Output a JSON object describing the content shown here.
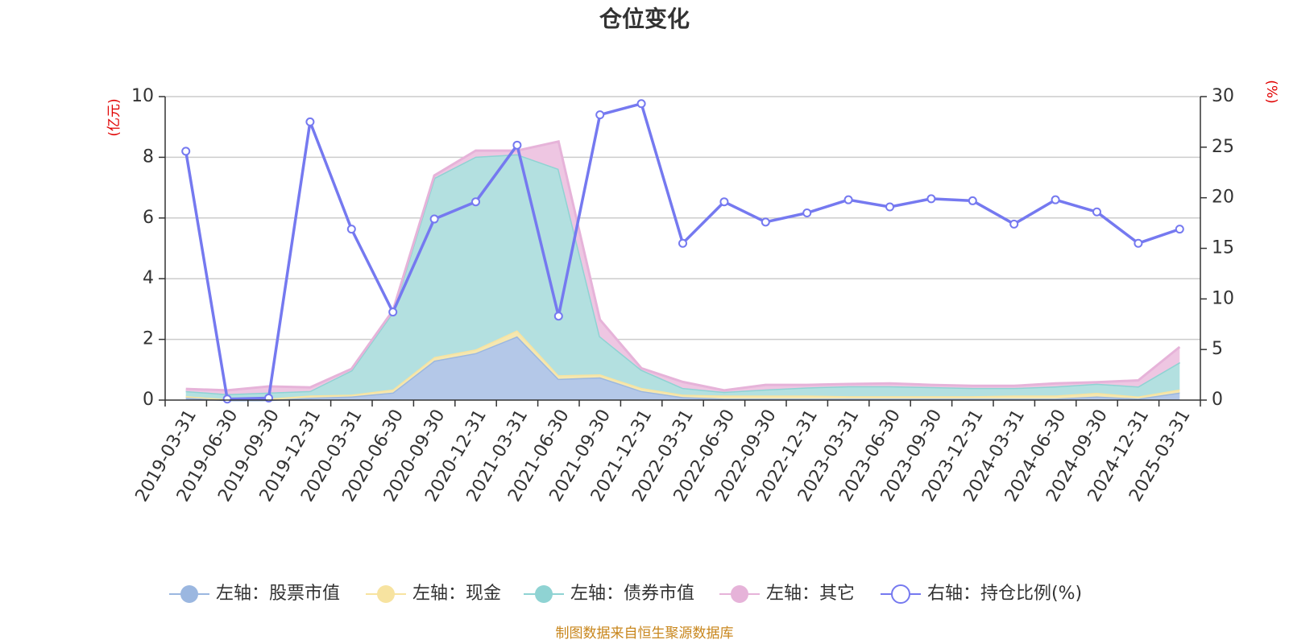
{
  "title": "仓位变化",
  "source_note": "制图数据来自恒生聚源数据库",
  "y_left_unit": "(亿元)",
  "y_right_unit": "(%)",
  "chart_data": {
    "type": "area",
    "title": "仓位变化",
    "x": [
      "2019-03-31",
      "2019-06-30",
      "2019-09-30",
      "2019-12-31",
      "2020-03-31",
      "2020-06-30",
      "2020-09-30",
      "2020-12-31",
      "2021-03-31",
      "2021-06-30",
      "2021-09-30",
      "2021-12-31",
      "2022-03-31",
      "2022-06-30",
      "2022-09-30",
      "2022-12-31",
      "2023-03-31",
      "2023-06-30",
      "2023-09-30",
      "2023-12-31",
      "2024-03-31",
      "2024-06-30",
      "2024-09-30",
      "2024-12-31",
      "2025-03-31"
    ],
    "y_left": {
      "unit": "(亿元)",
      "ylim": [
        0,
        10
      ],
      "ticks": [
        0,
        2,
        4,
        6,
        8,
        10
      ]
    },
    "y_right": {
      "unit": "(%)",
      "ylim": [
        0,
        30
      ],
      "ticks": [
        0,
        5,
        10,
        15,
        20,
        25,
        30
      ]
    },
    "grid": true,
    "legend_position": "bottom",
    "series": [
      {
        "name": "左轴：股票市值",
        "axis": "left",
        "stacked": true,
        "color": "#9bb7e0",
        "fill": "#b4c8e8",
        "values": [
          0.08,
          0.0,
          0.0,
          0.08,
          0.12,
          0.25,
          1.3,
          1.55,
          2.1,
          0.7,
          0.75,
          0.3,
          0.1,
          0.05,
          0.05,
          0.05,
          0.05,
          0.05,
          0.05,
          0.05,
          0.05,
          0.05,
          0.12,
          0.05,
          0.25
        ]
      },
      {
        "name": "左轴：现金",
        "axis": "left",
        "stacked": true,
        "color": "#f7e3a0",
        "fill": "#f5e7b0",
        "values": [
          0.05,
          0.03,
          0.05,
          0.07,
          0.06,
          0.1,
          0.12,
          0.12,
          0.2,
          0.12,
          0.1,
          0.1,
          0.08,
          0.1,
          0.1,
          0.1,
          0.08,
          0.08,
          0.08,
          0.08,
          0.1,
          0.1,
          0.12,
          0.07,
          0.1
        ]
      },
      {
        "name": "左轴：债券市值",
        "axis": "left",
        "stacked": true,
        "color": "#8fd3d3",
        "fill": "#b3e0e0",
        "values": [
          0.17,
          0.17,
          0.2,
          0.15,
          0.8,
          2.55,
          5.9,
          6.35,
          5.8,
          6.8,
          1.25,
          0.6,
          0.22,
          0.12,
          0.2,
          0.27,
          0.33,
          0.33,
          0.3,
          0.27,
          0.25,
          0.3,
          0.3,
          0.33,
          0.9
        ]
      },
      {
        "name": "左轴：其它",
        "axis": "left",
        "stacked": true,
        "color": "#e6b3d9",
        "fill": "#eec6e2",
        "values": [
          0.07,
          0.12,
          0.2,
          0.12,
          0.05,
          0.05,
          0.08,
          0.2,
          0.12,
          0.9,
          0.55,
          0.05,
          0.2,
          0.05,
          0.15,
          0.08,
          0.07,
          0.09,
          0.07,
          0.07,
          0.07,
          0.1,
          0.05,
          0.2,
          0.5
        ]
      },
      {
        "name": "右轴：持仓比例(%)",
        "axis": "right",
        "type": "line",
        "color": "#7579f0",
        "values": [
          24.6,
          0.1,
          0.2,
          27.5,
          16.9,
          8.7,
          17.9,
          19.6,
          25.2,
          8.3,
          28.2,
          29.3,
          15.5,
          19.6,
          17.6,
          18.5,
          19.8,
          19.1,
          19.9,
          19.7,
          17.4,
          19.8,
          18.6,
          15.5,
          16.9
        ]
      }
    ]
  }
}
